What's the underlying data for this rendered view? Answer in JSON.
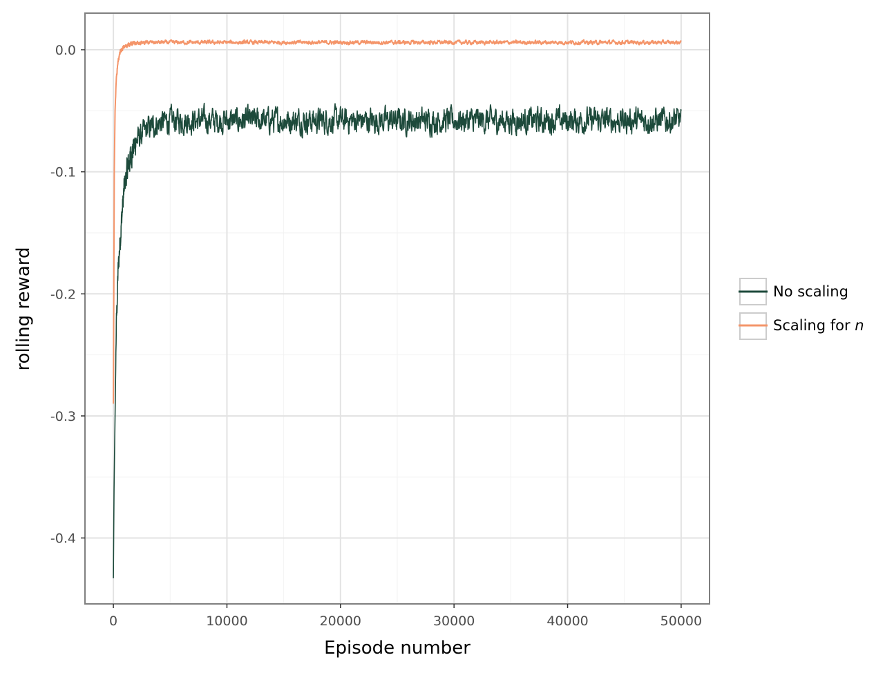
{
  "chart_data": {
    "type": "line",
    "title": "",
    "xlabel": "Episode number",
    "ylabel": "rolling reward",
    "xlim": [
      -2500,
      52500
    ],
    "ylim": [
      -0.454,
      0.03
    ],
    "x_ticks": [
      0,
      10000,
      20000,
      30000,
      40000,
      50000
    ],
    "x_tick_labels": [
      "0",
      "10000",
      "20000",
      "30000",
      "40000",
      "50000"
    ],
    "y_ticks": [
      0.0,
      -0.1,
      -0.2,
      -0.3,
      -0.4
    ],
    "y_tick_labels": [
      "0.0",
      "-0.1",
      "-0.2",
      "-0.3",
      "-0.4"
    ],
    "grid": true,
    "legend_position": "right",
    "series": [
      {
        "name": "No scaling",
        "color": "#1d4a3b",
        "noise": 0.008,
        "x": [
          0,
          60,
          150,
          250,
          400,
          600,
          800,
          1000,
          1300,
          1600,
          2000,
          2500,
          3000,
          4000,
          5000,
          10000,
          20000,
          30000,
          40000,
          50000
        ],
        "y": [
          -0.433,
          -0.36,
          -0.3,
          -0.23,
          -0.185,
          -0.155,
          -0.13,
          -0.11,
          -0.095,
          -0.085,
          -0.075,
          -0.07,
          -0.065,
          -0.06,
          -0.058,
          -0.058,
          -0.058,
          -0.058,
          -0.058,
          -0.058
        ]
      },
      {
        "name": "Scaling for n",
        "label_prefix": "Scaling for ",
        "label_italic": "n",
        "color": "#f4956a",
        "noise": 0.0012,
        "x": [
          0,
          40,
          80,
          150,
          250,
          400,
          600,
          900,
          1500,
          3000,
          10000,
          20000,
          30000,
          40000,
          50000
        ],
        "y": [
          -0.29,
          -0.2,
          -0.1,
          -0.05,
          -0.025,
          -0.01,
          -0.002,
          0.002,
          0.005,
          0.006,
          0.006,
          0.006,
          0.006,
          0.006,
          0.006
        ]
      }
    ]
  }
}
